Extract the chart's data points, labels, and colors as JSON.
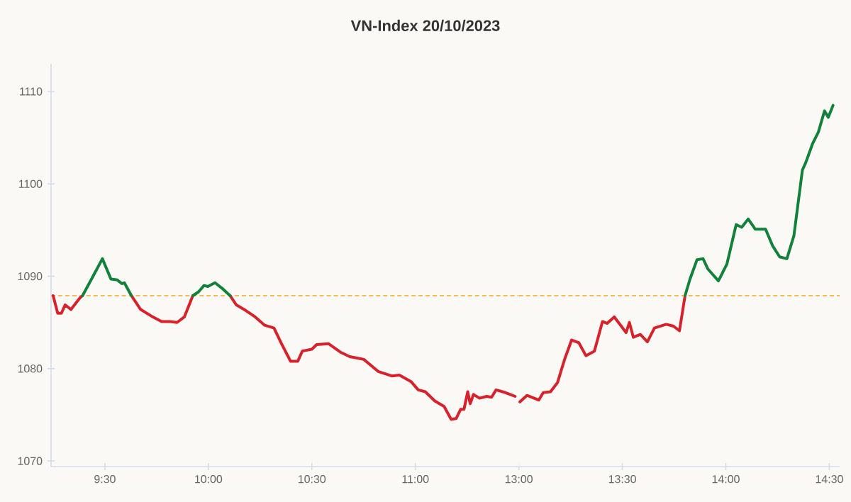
{
  "chart_data": [
    {
      "type": "line",
      "title": "VN-Index 20/10/2023",
      "x": [
        9.25,
        9.272,
        9.29,
        9.308,
        9.336,
        9.381,
        9.392,
        9.438,
        9.488,
        9.529,
        9.56,
        9.582,
        9.594,
        9.628,
        9.673,
        9.724,
        9.774,
        9.815,
        9.849,
        9.884,
        9.925,
        9.952,
        9.979,
        9.998,
        10.032,
        10.066,
        10.105,
        10.135,
        10.18,
        10.226,
        10.272,
        10.317,
        10.351,
        10.397,
        10.432,
        10.454,
        10.5,
        10.523,
        10.58,
        10.637,
        10.683,
        10.751,
        10.82,
        10.888,
        10.923,
        10.979,
        11.014,
        11.048,
        11.094,
        11.139,
        11.173,
        11.197,
        11.219,
        11.235,
        11.253,
        11.265,
        11.281,
        11.31,
        11.345,
        11.368,
        11.39,
        11.436,
        11.482
      ],
      "series": [
        {
          "color": "#d9212b",
          "values": [
            1087.9,
            1086.0,
            1086.0,
            1086.9,
            1086.4,
            1087.7,
            1087.9,
            null,
            null,
            null,
            null,
            null,
            null,
            1087.9,
            1086.4,
            1085.7,
            1085.1,
            1085.1,
            1085.0,
            1085.6,
            1087.9,
            null,
            null,
            null,
            null,
            null,
            1087.9,
            1086.9,
            1086.3,
            1085.6,
            1084.7,
            1084.4,
            1082.8,
            1080.8,
            1080.8,
            1081.9,
            1082.1,
            1082.6,
            1082.7,
            1081.8,
            1081.3,
            1081.0,
            1079.7,
            1079.2,
            1079.3,
            1078.6,
            1077.7,
            1077.5,
            1076.5,
            1075.9,
            1074.5,
            1074.6,
            1075.6,
            1075.6,
            1077.5,
            1076.2,
            1077.2,
            1076.8,
            1077.0,
            1076.9,
            1077.7,
            1077.4,
            1077.0
          ]
        },
        {
          "color": "#12813a",
          "values": [
            null,
            null,
            null,
            null,
            null,
            null,
            1087.9,
            1089.8,
            1091.9,
            1089.7,
            1089.6,
            1089.2,
            1089.3,
            1087.9,
            null,
            null,
            null,
            null,
            null,
            null,
            1087.9,
            1088.3,
            1089.0,
            1088.9,
            1089.3,
            1088.7,
            1087.9,
            null,
            null,
            null,
            null,
            null,
            null,
            null,
            null,
            null,
            null,
            null,
            null,
            null,
            null,
            null,
            null,
            null,
            null,
            null,
            null,
            null,
            null,
            null,
            null,
            null,
            null,
            null,
            null,
            null,
            null,
            null,
            null,
            null,
            null,
            null,
            null
          ]
        }
      ],
      "xlim": [
        9.24,
        11.5
      ],
      "ylim": [
        1069.4,
        1113
      ],
      "xticks": [
        {
          "value": 9.5,
          "label": "9:30"
        },
        {
          "value": 10,
          "label": "10:00"
        },
        {
          "value": 10.5,
          "label": "10:30"
        },
        {
          "value": 11,
          "label": "11:00"
        }
      ],
      "yticks": [
        1070,
        1080,
        1090,
        1100,
        1110
      ],
      "ref_lines": [
        {
          "axis": "y",
          "value": 1087.9,
          "color": "#f5a623",
          "line_style": "dashed"
        }
      ]
    },
    {
      "type": "line",
      "x": [
        13.005,
        13.039,
        13.096,
        13.118,
        13.153,
        13.187,
        13.221,
        13.255,
        13.29,
        13.324,
        13.365,
        13.404,
        13.427,
        13.461,
        13.495,
        13.518,
        13.534,
        13.553,
        13.587,
        13.621,
        13.655,
        13.712,
        13.747,
        13.776,
        13.803,
        13.827,
        13.861,
        13.89,
        13.913,
        13.964,
        14.005,
        14.05,
        14.077,
        14.108,
        14.142,
        14.192,
        14.226,
        14.26,
        14.295,
        14.329,
        14.37,
        14.386,
        14.42,
        14.447,
        14.477,
        14.495,
        14.518
      ],
      "series": [
        {
          "color": "#d9212b",
          "values": [
            1076.4,
            1077.1,
            1076.6,
            1077.4,
            1077.5,
            1078.5,
            1081.0,
            1083.1,
            1082.8,
            1081.4,
            1081.9,
            1085.1,
            1084.9,
            1085.6,
            1084.6,
            1083.9,
            1085.0,
            1083.4,
            1083.7,
            1082.9,
            1084.4,
            1084.8,
            1084.6,
            1084.1,
            1087.9,
            null,
            null,
            null,
            null,
            null,
            null,
            null,
            null,
            null,
            null,
            null,
            null,
            null,
            null,
            null,
            null,
            null,
            null,
            null,
            null,
            null,
            null
          ]
        },
        {
          "color": "#12813a",
          "values": [
            null,
            null,
            null,
            null,
            null,
            null,
            null,
            null,
            null,
            null,
            null,
            null,
            null,
            null,
            null,
            null,
            null,
            null,
            null,
            null,
            null,
            null,
            null,
            null,
            1087.9,
            1089.7,
            1091.8,
            1091.9,
            1090.8,
            1089.5,
            1091.3,
            1095.6,
            1095.3,
            1096.2,
            1095.1,
            1095.1,
            1093.3,
            1092.1,
            1091.9,
            1094.4,
            1101.5,
            1102.3,
            1104.4,
            1105.6,
            1107.9,
            1107.2,
            1108.5
          ]
        }
      ],
      "xlim": [
        13.0,
        14.55
      ],
      "ylim": [
        1069.4,
        1113
      ],
      "yticks": [
        1070,
        1080,
        1090,
        1100,
        1110
      ],
      "xticks": [
        {
          "value": 13,
          "label": "13:00"
        },
        {
          "value": 13.5,
          "label": "13:30"
        },
        {
          "value": 14,
          "label": "14:00"
        },
        {
          "value": 14.5,
          "label": "14:30"
        }
      ],
      "tick_labels": "x",
      "ref_lines": [
        {
          "axis": "y",
          "value": 1087.9,
          "color": "#f5a623",
          "line_style": "dashed"
        }
      ]
    }
  ]
}
